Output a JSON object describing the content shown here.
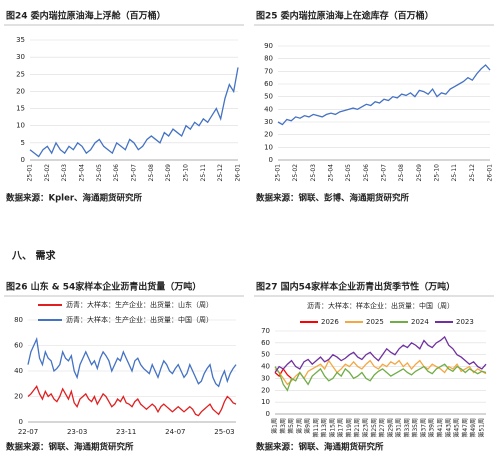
{
  "section_heading": "八、 需求",
  "chart_data": [
    {
      "type": "line",
      "title": "图24  委内瑞拉原油海上浮舱（百万桶）",
      "source": "数据来源：Kpler、海通期货研究所",
      "color": "#4472c4",
      "grid": true,
      "categories": [
        "25-01",
        null,
        null,
        null,
        "25-02",
        null,
        null,
        null,
        "25-03",
        null,
        null,
        null,
        "25-04",
        null,
        null,
        null,
        "25-05",
        null,
        null,
        null,
        "25-06",
        null,
        null,
        null,
        "25-07",
        null,
        null,
        null,
        "25-08",
        null,
        null,
        null,
        "25-09",
        null,
        null,
        null,
        "25-10",
        null,
        null,
        null,
        "25-11",
        null,
        null,
        null,
        "25-12",
        null,
        null,
        null,
        "26-01"
      ],
      "values": [
        3,
        2,
        1,
        3,
        4,
        2,
        5,
        3,
        2,
        4,
        3,
        5,
        4,
        2,
        3,
        5,
        6,
        4,
        3,
        2,
        5,
        4,
        3,
        6,
        5,
        3,
        4,
        6,
        7,
        6,
        5,
        8,
        7,
        9,
        8,
        7,
        10,
        9,
        11,
        10,
        12,
        11,
        13,
        15,
        12,
        18,
        22,
        20,
        27
      ],
      "ylim": [
        0,
        35
      ],
      "yticks": [
        0,
        5,
        10,
        15,
        20,
        25,
        30,
        35
      ]
    },
    {
      "type": "line",
      "title": "图25  委内瑞拉原油海上在途库存（百万桶）",
      "source": "数据来源：钢联、彭博、海通期货研究所",
      "color": "#4472c4",
      "grid": true,
      "categories": [
        "25-01",
        null,
        null,
        null,
        "25-02",
        null,
        null,
        null,
        "25-03",
        null,
        null,
        null,
        "25-04",
        null,
        null,
        null,
        "25-05",
        null,
        null,
        null,
        "25-06",
        null,
        null,
        null,
        "25-07",
        null,
        null,
        null,
        "25-08",
        null,
        null,
        null,
        "25-09",
        null,
        null,
        null,
        "25-10",
        null,
        null,
        null,
        "25-11",
        null,
        null,
        null,
        "25-12",
        null,
        null,
        null,
        "26-01"
      ],
      "values": [
        30,
        28,
        32,
        31,
        34,
        33,
        35,
        34,
        36,
        35,
        34,
        36,
        37,
        36,
        38,
        39,
        40,
        41,
        40,
        42,
        44,
        43,
        46,
        45,
        48,
        47,
        50,
        49,
        52,
        51,
        53,
        50,
        55,
        54,
        52,
        56,
        50,
        53,
        52,
        56,
        58,
        60,
        62,
        65,
        63,
        68,
        72,
        75,
        71
      ],
      "ylim": [
        0,
        90
      ],
      "yticks": [
        0,
        10,
        20,
        30,
        40,
        50,
        60,
        70,
        80,
        90
      ]
    },
    {
      "type": "line",
      "title": "图26  山东 & 54家样本企业沥青出货量（万吨）",
      "source": "数据来源：钢联、海通期货研究所",
      "grid": true,
      "categories": [
        "22-07",
        null,
        null,
        null,
        null,
        null,
        null,
        null,
        null,
        null,
        null,
        null,
        null,
        null,
        null,
        null,
        null,
        "23-03",
        null,
        null,
        null,
        null,
        null,
        null,
        null,
        null,
        null,
        null,
        null,
        null,
        null,
        null,
        null,
        null,
        "23-11",
        null,
        null,
        null,
        null,
        null,
        null,
        null,
        null,
        null,
        null,
        null,
        null,
        null,
        null,
        null,
        null,
        "24-07",
        null,
        null,
        null,
        null,
        null,
        null,
        null,
        null,
        null,
        null,
        null,
        null,
        null,
        null,
        null,
        null,
        "25-03",
        null,
        null,
        null,
        null
      ],
      "series": [
        {
          "name": "沥青：大样本：生产企业：出货量：山东（周）",
          "color": "#e02020",
          "values": [
            20,
            22,
            25,
            28,
            22,
            18,
            24,
            20,
            22,
            18,
            16,
            20,
            26,
            22,
            18,
            24,
            15,
            12,
            18,
            20,
            22,
            18,
            16,
            20,
            14,
            18,
            22,
            20,
            16,
            12,
            14,
            18,
            16,
            20,
            15,
            14,
            12,
            16,
            18,
            14,
            12,
            10,
            12,
            14,
            12,
            8,
            12,
            14,
            12,
            10,
            8,
            10,
            12,
            10,
            8,
            10,
            12,
            10,
            6,
            5,
            8,
            10,
            12,
            14,
            10,
            8,
            6,
            10,
            16,
            20,
            18,
            15,
            14
          ]
        },
        {
          "name": "沥青：大样本：生产企业：出货量：中国（周）",
          "color": "#4472c4",
          "values": [
            45,
            55,
            60,
            65,
            50,
            45,
            55,
            50,
            48,
            40,
            42,
            45,
            55,
            50,
            48,
            52,
            40,
            35,
            45,
            50,
            55,
            50,
            45,
            48,
            42,
            50,
            55,
            52,
            48,
            40,
            45,
            50,
            48,
            55,
            50,
            45,
            40,
            48,
            50,
            45,
            42,
            40,
            38,
            45,
            40,
            35,
            42,
            48,
            45,
            40,
            38,
            42,
            45,
            40,
            35,
            38,
            45,
            40,
            35,
            30,
            32,
            38,
            42,
            45,
            35,
            30,
            28,
            35,
            40,
            32,
            38,
            42,
            45
          ]
        }
      ],
      "ylim": [
        0,
        80
      ],
      "yticks": [
        0,
        20,
        40,
        60,
        80
      ]
    },
    {
      "type": "line",
      "title": "图27  国内54家样本企业沥青出货季节性（万吨）",
      "subtitle": "沥青：大样本：样本企业：出货量：中国（周）",
      "source": "数据来源：钢联、海通期货研究所",
      "grid": true,
      "categories": [
        "第1周",
        null,
        "第3周",
        null,
        "第5周",
        null,
        "第7周",
        null,
        "第9周",
        null,
        "第11周",
        null,
        "第13周",
        null,
        "第15周",
        null,
        "第17周",
        null,
        "第19周",
        null,
        "第21周",
        null,
        "第23周",
        null,
        "第25周",
        null,
        "第27周",
        null,
        "第29周",
        null,
        "第31周",
        null,
        "第33周",
        null,
        "第35周",
        null,
        "第37周",
        null,
        "第39周",
        null,
        "第41周",
        null,
        "第43周",
        null,
        "第45周",
        null,
        "第47周",
        null,
        "第49周",
        null,
        "第51周",
        null
      ],
      "series": [
        {
          "name": "2026",
          "color": "#ff0000",
          "values": [
            35,
            32,
            38,
            33,
            30,
            null,
            null,
            null,
            null,
            null,
            null,
            null,
            null,
            null,
            null,
            null,
            null,
            null,
            null,
            null,
            null,
            null,
            null,
            null,
            null,
            null,
            null,
            null,
            null,
            null,
            null,
            null,
            null,
            null,
            null,
            null,
            null,
            null,
            null,
            null,
            null,
            null,
            null,
            null,
            null,
            null,
            null,
            null,
            null,
            null,
            null,
            null
          ]
        },
        {
          "name": "2025",
          "color": "#f4a742",
          "values": [
            38,
            35,
            30,
            25,
            28,
            32,
            35,
            30,
            36,
            38,
            40,
            42,
            38,
            45,
            40,
            35,
            38,
            42,
            40,
            44,
            40,
            38,
            42,
            45,
            40,
            38,
            42,
            40,
            44,
            42,
            45,
            40,
            43,
            38,
            42,
            45,
            40,
            38,
            42,
            40,
            38,
            35,
            40,
            38,
            42,
            36,
            38,
            40,
            35,
            38,
            36,
            34
          ]
        },
        {
          "name": "2024",
          "color": "#70ad47",
          "values": [
            40,
            35,
            25,
            20,
            30,
            28,
            35,
            30,
            25,
            32,
            35,
            38,
            32,
            28,
            30,
            35,
            32,
            38,
            35,
            30,
            32,
            35,
            30,
            28,
            33,
            36,
            38,
            35,
            32,
            34,
            36,
            38,
            35,
            33,
            36,
            38,
            40,
            36,
            34,
            38,
            40,
            42,
            38,
            36,
            40,
            38,
            35,
            38,
            36,
            34,
            36,
            35
          ]
        },
        {
          "name": "2023",
          "color": "#7030a0",
          "values": [
            35,
            40,
            38,
            42,
            45,
            40,
            38,
            44,
            46,
            42,
            45,
            48,
            44,
            46,
            50,
            48,
            45,
            47,
            50,
            52,
            48,
            46,
            50,
            52,
            48,
            45,
            50,
            55,
            52,
            50,
            55,
            58,
            56,
            60,
            58,
            55,
            62,
            58,
            56,
            60,
            62,
            65,
            58,
            55,
            50,
            48,
            45,
            42,
            44,
            40,
            38,
            42
          ]
        }
      ],
      "ylim": [
        0,
        70
      ],
      "yticks": [
        0,
        10,
        20,
        30,
        40,
        50,
        60,
        70
      ]
    }
  ]
}
